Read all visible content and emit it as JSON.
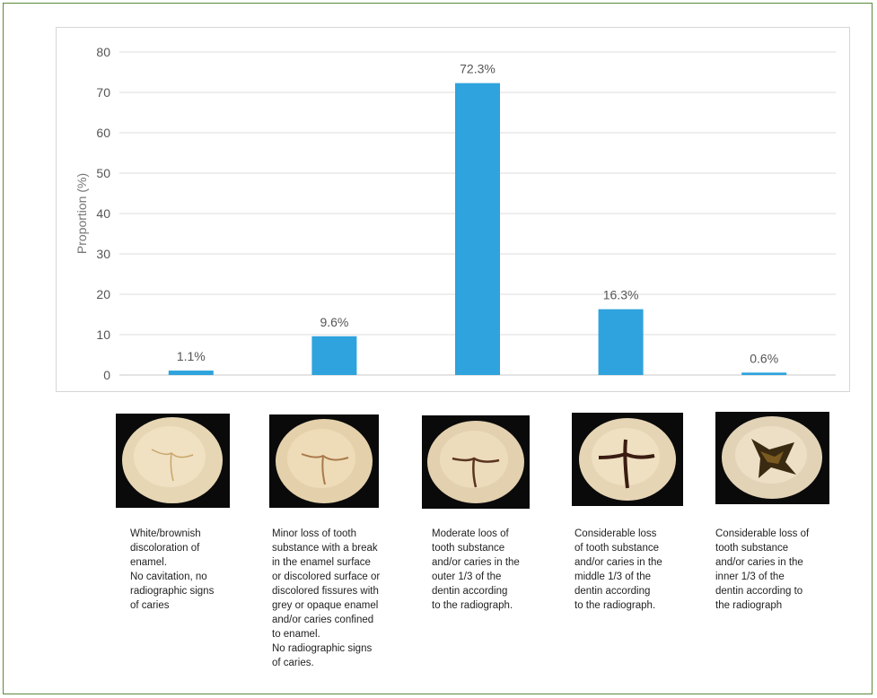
{
  "chart_data": {
    "type": "bar",
    "categories": [
      "White/brownish discoloration",
      "Minor loss of tooth substance",
      "Moderate loss of tooth substance",
      "Considerable loss (middle 1/3)",
      "Considerable loss (inner 1/3)"
    ],
    "values": [
      1.1,
      9.6,
      72.3,
      16.3,
      0.6
    ],
    "data_labels": [
      "1.1%",
      "9.6%",
      "72.3%",
      "16.3%",
      "0.6%"
    ],
    "ylabel": "Proportion (%)",
    "ylim": [
      0,
      80
    ],
    "yticks": [
      "0",
      "10",
      "20",
      "30",
      "40",
      "50",
      "60",
      "70",
      "80"
    ],
    "grid": true,
    "bar_color": "#2ea3dd"
  },
  "descriptions": [
    "White/brownish\ndiscoloration of\nenamel.\nNo cavitation, no\nradiographic signs\nof caries",
    "Minor loss of tooth\nsubstance with a break\nin the enamel surface\nor discolored surface or\ndiscolored fissures with\ngrey or opaque enamel\nand/or caries confined\nto enamel.\nNo radiographic signs\nof caries.",
    "Moderate loos of\ntooth substance\nand/or caries in the\nouter 1/3 of the\ndentin according\nto the radiograph.",
    "Considerable loss\nof tooth substance\nand/or caries in the\nmiddle 1/3 of the\ndentin according\nto the radiograph.",
    "Considerable loss of\ntooth substance\nand/or caries in the\ninner 1/3 of the\ndentin according to\nthe radiograph"
  ]
}
